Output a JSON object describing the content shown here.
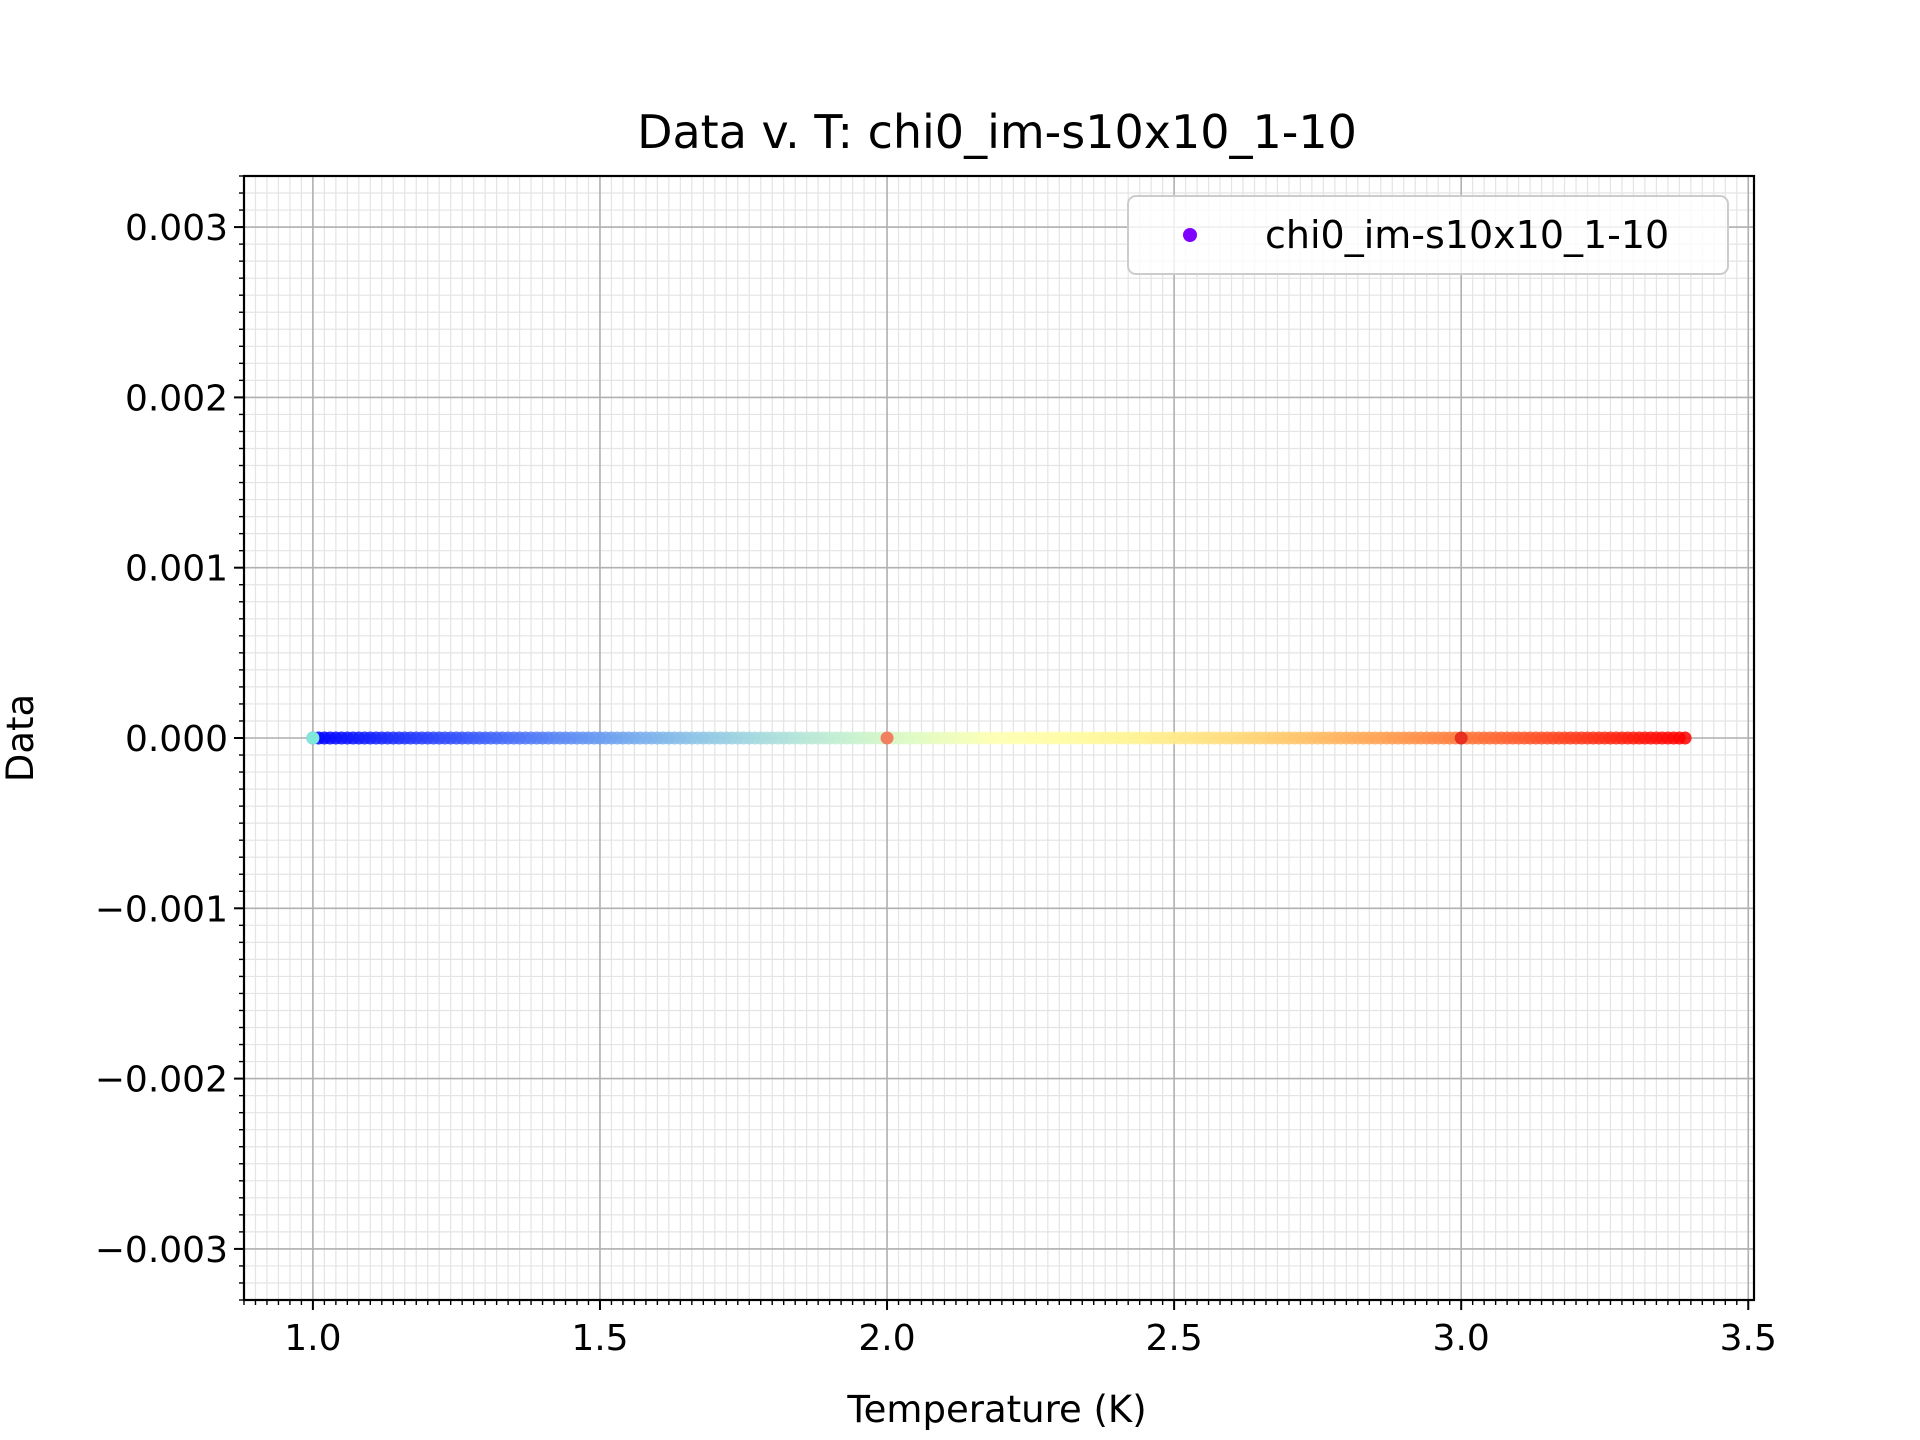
{
  "chart_data": {
    "type": "scatter",
    "title": "Data v. T: chi0_im-s10x10_1-10",
    "xlabel": "Temperature (K)",
    "ylabel": "Data",
    "xlim": [
      0.88,
      3.51
    ],
    "ylim": [
      -0.0033,
      0.0033
    ],
    "x_major_ticks": [
      1.0,
      1.5,
      2.0,
      2.5,
      3.0,
      3.5
    ],
    "x_tick_labels": [
      "1.0",
      "1.5",
      "2.0",
      "2.5",
      "3.0",
      "3.5"
    ],
    "y_major_ticks": [
      -0.003,
      -0.002,
      -0.001,
      0.0,
      0.001,
      0.002,
      0.003
    ],
    "y_tick_labels": [
      "−0.003",
      "−0.002",
      "−0.001",
      "0.000",
      "0.001",
      "0.002",
      "0.003"
    ],
    "x_minor_step": 0.02,
    "y_minor_step": 0.0001,
    "grid": true,
    "legend": {
      "placement": "top-right",
      "entries": [
        {
          "label": "chi0_im-s10x10_1-10",
          "color": "#8000ff"
        }
      ]
    },
    "colormap": "rainbow",
    "series": [
      {
        "name": "chi0_im-s10x10_1-10",
        "x_start": 1.0,
        "x_end": 3.39,
        "x_step": 0.01,
        "y_value": 0.0,
        "extra_points": [
          {
            "x": 1.0,
            "y": 0.0,
            "color": "#7fe8d8"
          },
          {
            "x": 2.0,
            "y": 0.0,
            "color": "#f08060"
          },
          {
            "x": 3.0,
            "y": 0.0,
            "color": "#e83020"
          }
        ]
      }
    ]
  }
}
